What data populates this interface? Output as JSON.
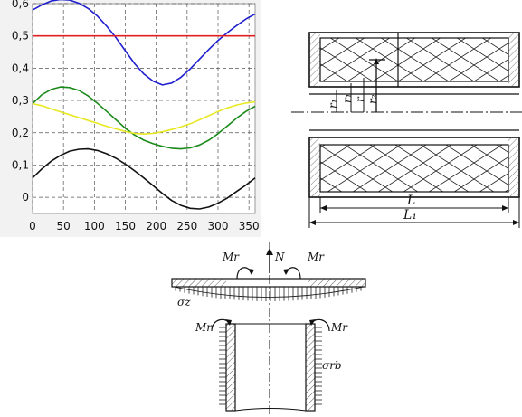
{
  "chart_data": {
    "type": "line",
    "xlim": [
      0,
      360
    ],
    "ylim": [
      -0.05,
      0.6
    ],
    "x_ticks": [
      "0",
      "50",
      "100",
      "150",
      "200",
      "250",
      "300",
      "350"
    ],
    "y_ticks": [
      "0",
      "0,1",
      "0,2",
      "0,3",
      "0,4",
      "0,5",
      "0,6"
    ],
    "grid": true,
    "x": [
      0,
      15,
      30,
      45,
      60,
      75,
      90,
      105,
      120,
      135,
      150,
      165,
      180,
      195,
      210,
      225,
      240,
      255,
      270,
      285,
      300,
      315,
      330,
      345,
      360
    ],
    "series": [
      {
        "color": "#1f1fd0",
        "values": [
          0.58,
          0.596,
          0.608,
          0.613,
          0.611,
          0.601,
          0.585,
          0.561,
          0.53,
          0.494,
          0.454,
          0.414,
          0.382,
          0.36,
          0.348,
          0.354,
          0.372,
          0.398,
          0.428,
          0.458,
          0.486,
          0.51,
          0.532,
          0.552,
          0.568
        ]
      },
      {
        "color": "#e02020",
        "values": [
          0.5,
          0.5,
          0.5,
          0.5,
          0.5,
          0.5,
          0.5,
          0.5,
          0.5,
          0.5,
          0.5,
          0.5,
          0.5,
          0.5,
          0.5,
          0.5,
          0.5,
          0.5,
          0.5,
          0.5,
          0.5,
          0.5,
          0.5,
          0.5,
          0.5
        ]
      },
      {
        "color": "#1a8a1a",
        "values": [
          0.29,
          0.318,
          0.334,
          0.342,
          0.34,
          0.331,
          0.314,
          0.291,
          0.266,
          0.24,
          0.214,
          0.193,
          0.177,
          0.166,
          0.158,
          0.152,
          0.15,
          0.153,
          0.162,
          0.177,
          0.197,
          0.221,
          0.245,
          0.266,
          0.282
        ]
      },
      {
        "color": "#e8e822",
        "values": [
          0.29,
          0.284,
          0.274,
          0.265,
          0.256,
          0.247,
          0.238,
          0.229,
          0.22,
          0.212,
          0.204,
          0.198,
          0.196,
          0.198,
          0.203,
          0.21,
          0.218,
          0.228,
          0.24,
          0.253,
          0.266,
          0.277,
          0.286,
          0.292,
          0.296
        ]
      },
      {
        "color": "#111111",
        "values": [
          0.06,
          0.088,
          0.112,
          0.13,
          0.143,
          0.149,
          0.15,
          0.145,
          0.135,
          0.121,
          0.103,
          0.082,
          0.06,
          0.036,
          0.012,
          -0.01,
          -0.025,
          -0.034,
          -0.036,
          -0.03,
          -0.018,
          -0.002,
          0.018,
          0.038,
          0.06
        ]
      }
    ]
  },
  "section_diagram": {
    "labels": {
      "r1": "r₁",
      "r_small": "r₁",
      "r": "r",
      "r2": "r₂",
      "L": "L",
      "L1": "L₁"
    }
  },
  "stress_diagram": {
    "labels": {
      "N": "N",
      "Mr_top_left": "Mr",
      "Mr_top_right": "Mr",
      "Mr_mid_left": "Mr",
      "Mr_mid_right": "Mr",
      "sigma_z": "σz",
      "sigma_rb": "σrb"
    }
  }
}
